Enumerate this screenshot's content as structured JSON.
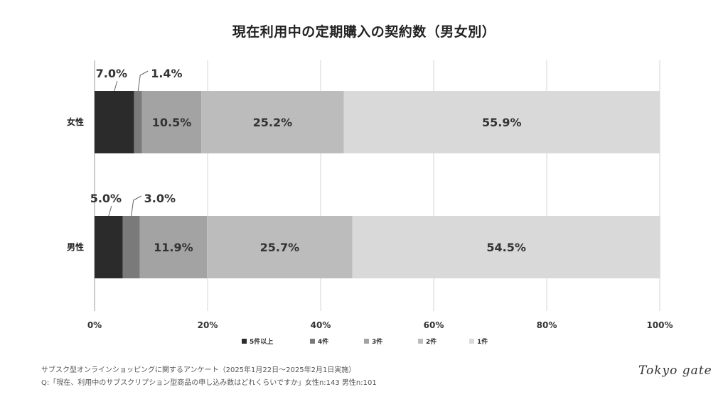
{
  "title": "現在利用中の定期購入の契約数（男女別）",
  "chart_data": {
    "type": "bar",
    "orientation": "horizontal",
    "stacked": true,
    "xlim": [
      0,
      100
    ],
    "x_ticks": [
      "0%",
      "20%",
      "40%",
      "60%",
      "80%",
      "100%"
    ],
    "grid": true,
    "legend_position": "bottom",
    "categories": [
      "女性",
      "男性"
    ],
    "series": [
      {
        "name": "5件以上",
        "color": "#2b2b2b",
        "values": [
          7.0,
          5.0
        ],
        "labels": [
          "7.0%",
          "5.0%"
        ]
      },
      {
        "name": "4件",
        "color": "#7a7a7a",
        "values": [
          1.4,
          3.0
        ],
        "labels": [
          "1.4%",
          "3.0%"
        ]
      },
      {
        "name": "3件",
        "color": "#a3a3a3",
        "values": [
          10.5,
          11.9
        ],
        "labels": [
          "10.5%",
          "11.9%"
        ]
      },
      {
        "name": "2件",
        "color": "#bcbcbc",
        "values": [
          25.2,
          25.7
        ],
        "labels": [
          "25.2%",
          "25.7%"
        ]
      },
      {
        "name": "1件",
        "color": "#d9d9d9",
        "values": [
          55.9,
          54.5
        ],
        "labels": [
          "55.9%",
          "54.5%"
        ]
      }
    ]
  },
  "footer": {
    "line1": "サブスク型オンラインショッピングに関するアンケート（2025年1月22日〜2025年2月1日実施）",
    "line2": "Q:「現在、利用中のサブスクリプション型商品の申し込み数はどれくらいですか」女性n:143 男性n:101"
  },
  "logo": "Tokyo gate"
}
